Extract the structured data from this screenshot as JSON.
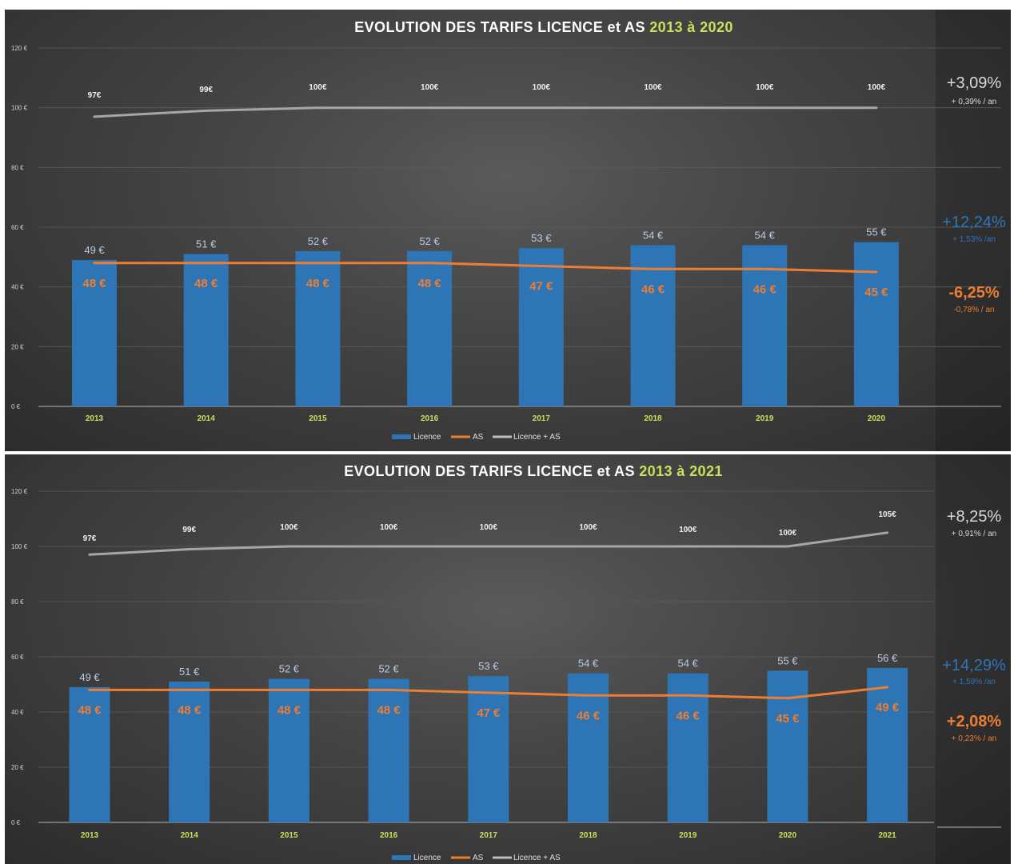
{
  "chart_data": [
    {
      "type": "bar",
      "title": "EVOLUTION DES TARIFS LICENCE et AS",
      "title_highlight": "2013 à 2020",
      "ylim": [
        0,
        120
      ],
      "yticks": [
        "0 €",
        "20 €",
        "40 €",
        "60 €",
        "80 €",
        "100 €",
        "120 €"
      ],
      "categories": [
        "2013",
        "2014",
        "2015",
        "2016",
        "2017",
        "2018",
        "2019",
        "2020"
      ],
      "series": [
        {
          "name": "Licence",
          "type": "bar",
          "color": "#2e75b6",
          "values": [
            49,
            51,
            52,
            52,
            53,
            54,
            54,
            55
          ],
          "labels": [
            "49 €",
            "51 €",
            "52 €",
            "52 €",
            "53 €",
            "54 €",
            "54 €",
            "55 €"
          ]
        },
        {
          "name": "AS",
          "type": "line",
          "color": "#ed7d31",
          "values": [
            48,
            48,
            48,
            48,
            47,
            46,
            46,
            45
          ],
          "labels": [
            "48 €",
            "48 €",
            "48 €",
            "48 €",
            "47 €",
            "46 €",
            "46 €",
            "45 €"
          ]
        },
        {
          "name": "Licence + AS",
          "type": "line",
          "color": "#a6a6a6",
          "values": [
            97,
            99,
            100,
            100,
            100,
            100,
            100,
            100
          ],
          "labels": [
            "97€",
            "99€",
            "100€",
            "100€",
            "100€",
            "100€",
            "100€",
            "100€"
          ]
        }
      ],
      "legend": "bottom",
      "annotations": [
        {
          "series": "Licence + AS",
          "total": "+3,09%",
          "per_year": "+ 0,39% / an",
          "color": "#d9d9d9"
        },
        {
          "series": "Licence",
          "total": "+12,24%",
          "per_year": "+ 1,53% /an",
          "color": "#2e75b6"
        },
        {
          "series": "AS",
          "total": "-6,25%",
          "per_year": "-0,78% / an",
          "color": "#ed7d31"
        }
      ]
    },
    {
      "type": "bar",
      "title": "EVOLUTION DES TARIFS LICENCE et AS",
      "title_highlight": "2013 à 2021",
      "ylim": [
        0,
        120
      ],
      "yticks": [
        "0 €",
        "20 €",
        "40 €",
        "60 €",
        "80 €",
        "100 €",
        "120 €"
      ],
      "categories": [
        "2013",
        "2014",
        "2015",
        "2016",
        "2017",
        "2018",
        "2019",
        "2020",
        "2021"
      ],
      "series": [
        {
          "name": "Licence",
          "type": "bar",
          "color": "#2e75b6",
          "values": [
            49,
            51,
            52,
            52,
            53,
            54,
            54,
            55,
            56
          ],
          "labels": [
            "49 €",
            "51 €",
            "52 €",
            "52 €",
            "53 €",
            "54 €",
            "54 €",
            "55 €",
            "56 €"
          ]
        },
        {
          "name": "AS",
          "type": "line",
          "color": "#ed7d31",
          "values": [
            48,
            48,
            48,
            48,
            47,
            46,
            46,
            45,
            49
          ],
          "labels": [
            "48 €",
            "48 €",
            "48 €",
            "48 €",
            "47 €",
            "46 €",
            "46 €",
            "45 €",
            "49 €"
          ]
        },
        {
          "name": "Licence + AS",
          "type": "line",
          "color": "#a6a6a6",
          "values": [
            97,
            99,
            100,
            100,
            100,
            100,
            100,
            100,
            105
          ],
          "labels": [
            "97€",
            "99€",
            "100€",
            "100€",
            "100€",
            "100€",
            "100€",
            "100€",
            "105€"
          ]
        }
      ],
      "legend": "bottom",
      "annotations": [
        {
          "series": "Licence + AS",
          "total": "+8,25%",
          "per_year": "+ 0,91% / an",
          "color": "#d9d9d9"
        },
        {
          "series": "Licence",
          "total": "+14,29%",
          "per_year": "+ 1,59% /an",
          "color": "#2e75b6"
        },
        {
          "series": "AS",
          "total": "+2,08%",
          "per_year": "+ 0,23% / an",
          "color": "#ed7d31"
        }
      ]
    }
  ]
}
